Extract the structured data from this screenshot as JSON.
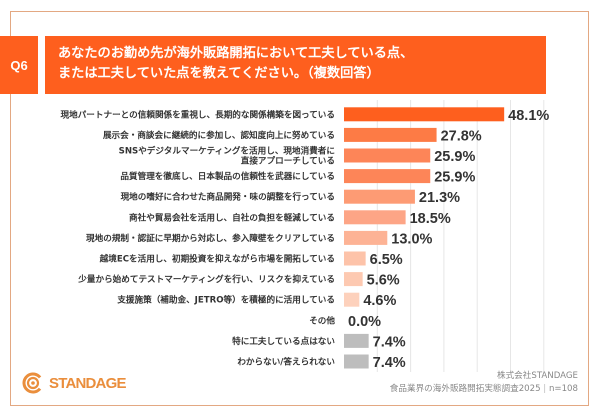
{
  "header": {
    "question_number": "Q6",
    "title_lines": [
      "あなたのお勤め先が海外販路開拓において工夫している点、",
      "または工夫していた点を教えてください。（複数回答）"
    ]
  },
  "colors": {
    "accent": "#fe5f1e",
    "frame": "#e3a882",
    "gray_bar": "#bdbdbd",
    "logo": "#ea8e3c"
  },
  "chart_data": {
    "type": "bar",
    "orientation": "horizontal",
    "title": "あなたのお勤め先が海外販路開拓において工夫している点、または工夫していた点を教えてください。（複数回答）",
    "xlabel": "",
    "ylabel": "",
    "unit": "%",
    "xlim": [
      0,
      70
    ],
    "grid": true,
    "grid_step": 10,
    "legend": "none",
    "categories": [
      [
        "現地パートナーとの信頼関係を重視し、長期的な関係構築を図っている"
      ],
      [
        "展示会・商談会に継続的に参加し、認知度向上に努めている"
      ],
      [
        "SNSやデジタルマーケティングを活用し、現地消費者に",
        "直接アプローチしている"
      ],
      [
        "品質管理を徹底し、日本製品の信頼性を武器にしている"
      ],
      [
        "現地の嗜好に合わせた商品開発・味の調整を行っている"
      ],
      [
        "商社や貿易会社を活用し、自社の負担を軽減している"
      ],
      [
        "現地の規制・認証に早期から対応し、参入障壁をクリアしている"
      ],
      [
        "越境ECを活用し、初期投資を抑えながら市場を開拓している"
      ],
      [
        "少量から始めてテストマーケティングを行い、リスクを抑えている"
      ],
      [
        "支援施策（補助金、JETRO等）を積極的に活用している"
      ],
      [
        "その他"
      ],
      [
        "特に工夫している点はない"
      ],
      [
        "わからない/答えられない"
      ]
    ],
    "values": [
      48.1,
      27.8,
      25.9,
      25.9,
      21.3,
      18.5,
      13.0,
      6.5,
      5.6,
      4.6,
      0.0,
      7.4,
      7.4
    ],
    "value_labels": [
      "48.1%",
      "27.8%",
      "25.9%",
      "25.9%",
      "21.3%",
      "18.5%",
      "13.0%",
      "6.5%",
      "5.6%",
      "4.6%",
      "0.0%",
      "7.4%",
      "7.4%"
    ],
    "bar_colors": [
      "#fe5f1e",
      "#fd7b45",
      "#fd8558",
      "#fd8558",
      "#fd9b74",
      "#fda586",
      "#fdb395",
      "#fdc3a9",
      "#fdc9b1",
      "#fdd1bc",
      "#fdd1bc",
      "#bdbdbd",
      "#bdbdbd"
    ]
  },
  "footer": {
    "company": "株式会社STANDAGE",
    "survey": "食品業界の海外販路開拓実態調査2025",
    "sample": "n=108"
  },
  "logo": {
    "text": "STANDAGE",
    "icon": "standage-logo-icon"
  }
}
